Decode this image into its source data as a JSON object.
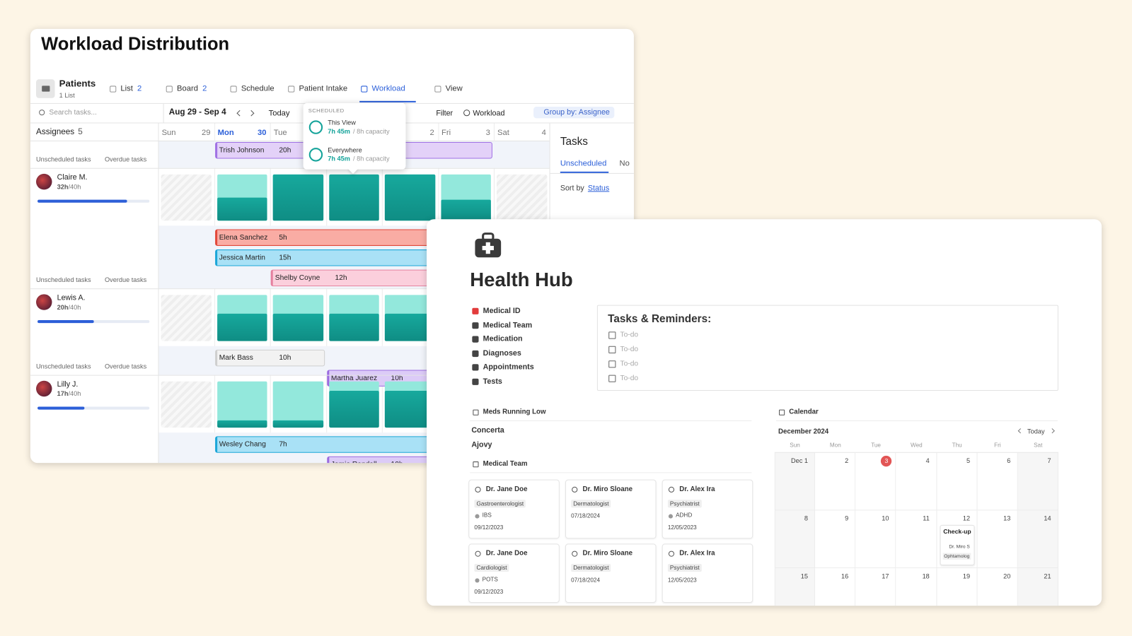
{
  "workload": {
    "title": "Workload Distribution",
    "space": {
      "name": "Patients",
      "sub": "1 List"
    },
    "tabs": [
      {
        "label": "List",
        "count": "2"
      },
      {
        "label": "Board",
        "count": "2"
      },
      {
        "label": "Schedule"
      },
      {
        "label": "Patient Intake"
      },
      {
        "label": "Workload",
        "active": true
      },
      {
        "label": "View"
      }
    ],
    "toolbar": {
      "search": "Search tasks...",
      "range": "Aug 29 - Sep 4",
      "today": "Today",
      "filter": "Filter",
      "workload": "Workload",
      "group": "Group by: Assignee"
    },
    "assignees": {
      "label": "Assignees",
      "count": "5"
    },
    "days": [
      {
        "name": "Sun",
        "num": "29"
      },
      {
        "name": "Mon",
        "num": "30",
        "current": true
      },
      {
        "name": "Tue",
        "num": null
      },
      {
        "name": null,
        "num": null
      },
      {
        "name": null,
        "num": "2"
      },
      {
        "name": "Fri",
        "num": "3"
      },
      {
        "name": "Sat",
        "num": "4"
      }
    ],
    "row_labels": {
      "unscheduled": "Unscheduled tasks",
      "overdue": "Overdue tasks"
    },
    "top_tasks": [
      {
        "name": "Trish Johnson",
        "hours": "20h",
        "start": 1,
        "span": 5,
        "color": "#e3d1f8",
        "border": "#a071e4"
      }
    ],
    "people": [
      {
        "name": "Claire M.",
        "hours": "32h",
        "capacity": "/40h",
        "progress": 80,
        "load": [
          null,
          50,
          100,
          100,
          100,
          45,
          null
        ],
        "tasks": [
          {
            "name": "Elena Sanchez",
            "hours": "5h",
            "start": 1,
            "span": 5,
            "color": "#f9aca4",
            "border": "#e2483a"
          },
          {
            "name": "Jessica Martin",
            "hours": "15h",
            "start": 1,
            "span": 5,
            "color": "#a9e1f6",
            "border": "#1ca6d8"
          },
          {
            "name": "Shelby Coyne",
            "hours": "12h",
            "start": 2,
            "span": 4,
            "color": "#fbcfdc",
            "border": "#e5809f"
          }
        ]
      },
      {
        "name": "Lewis A.",
        "hours": "20h",
        "capacity": "/40h",
        "progress": 50,
        "load": [
          null,
          60,
          60,
          60,
          60,
          null,
          null
        ],
        "tasks": [
          {
            "name": "Mark Bass",
            "hours": "10h",
            "start": 1,
            "span": 2,
            "color": "#f2f2f2",
            "border": "#cfcfcf"
          },
          {
            "name": "Martha Juarez",
            "hours": "10h",
            "start": 3,
            "span": 3,
            "color": "#dccbf7",
            "border": "#9b6be0"
          }
        ]
      },
      {
        "name": "Lilly J.",
        "hours": "17h",
        "capacity": "/40h",
        "progress": 42,
        "load": [
          null,
          15,
          15,
          80,
          80,
          null,
          null
        ],
        "tasks": [
          {
            "name": "Wesley Chang",
            "hours": "7h",
            "start": 1,
            "span": 5,
            "color": "#a9e1f6",
            "border": "#1ca6d8"
          },
          {
            "name": "Jamie Randall",
            "hours": "10h",
            "start": 3,
            "span": 3,
            "color": "#dccbf7",
            "border": "#9b6be0"
          }
        ]
      }
    ],
    "popover": {
      "heading": "SCHEDULED",
      "items": [
        {
          "label": "This View",
          "hours": "7h 45m",
          "capacity": "/ 8h capacity"
        },
        {
          "label": "Everywhere",
          "hours": "7h 45m",
          "capacity": "/ 8h capacity"
        }
      ]
    },
    "tasks_panel": {
      "title": "Tasks",
      "tabs": [
        "Unscheduled",
        "No"
      ],
      "sort_label": "Sort by",
      "sort_value": "Status"
    }
  },
  "health": {
    "title": "Health Hub",
    "nav": [
      "Medical ID",
      "Medical Team",
      "Medication",
      "Diagnoses",
      "Appointments",
      "Tests"
    ],
    "reminders": {
      "title": "Tasks & Reminders:",
      "items": [
        "To-do",
        "To-do",
        "To-do",
        "To-do"
      ]
    },
    "meds": {
      "title": "Meds Running Low",
      "items": [
        "Concerta",
        "Ajovy"
      ]
    },
    "team": {
      "title": "Medical Team",
      "cards": [
        {
          "name": "Dr. Jane Doe",
          "specialty": "Gastroenterologist",
          "diagnosis": "IBS",
          "date": "09/12/2023"
        },
        {
          "name": "Dr. Miro Sloane",
          "specialty": "Dermatologist",
          "date": "07/18/2024"
        },
        {
          "name": "Dr. Alex Ira",
          "specialty": "Psychiatrist",
          "diagnosis": "ADHD",
          "date": "12/05/2023"
        },
        {
          "name": "Dr. Jane Doe",
          "specialty": "Cardiologist",
          "diagnosis": "POTS",
          "date": "09/12/2023"
        },
        {
          "name": "Dr. Miro Sloane",
          "specialty": "Dermatologist",
          "date": "07/18/2024"
        },
        {
          "name": "Dr. Alex Ira",
          "specialty": "Psychiatrist",
          "date": "12/05/2023"
        }
      ]
    },
    "calendar": {
      "title": "Calendar",
      "month": "December 2024",
      "today": "Today",
      "weekdays": [
        "Sun",
        "Mon",
        "Tue",
        "Wed",
        "Thu",
        "Fri",
        "Sat"
      ],
      "cells": [
        "Dec 1",
        "2",
        "3",
        "4",
        "5",
        "6",
        "7",
        "8",
        "9",
        "10",
        "11",
        "12",
        "13",
        "14",
        "15",
        "16",
        "17",
        "18",
        "19",
        "20",
        "21"
      ],
      "current": 2,
      "event": {
        "cell": 11,
        "title": "Check-up",
        "doctor": "Dr. Miro S",
        "tag": "Ophtamolog"
      }
    }
  }
}
